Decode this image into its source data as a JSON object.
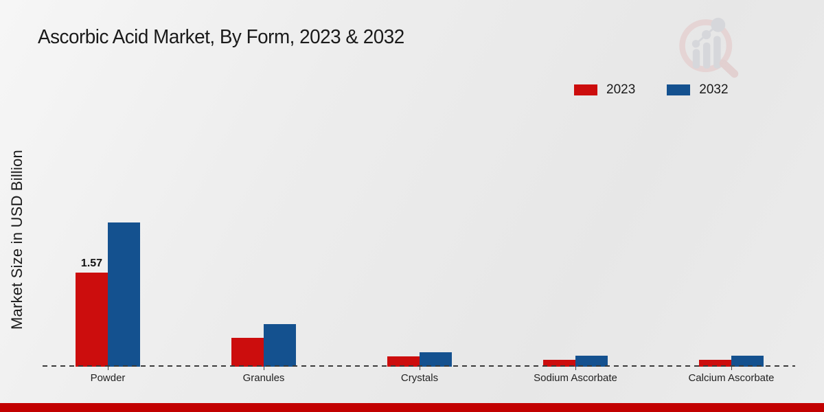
{
  "header": {
    "title": "Ascorbic Acid Market, By Form, 2023 & 2032"
  },
  "axes": {
    "y_label": "Market Size in USD Billion"
  },
  "colors": {
    "series_2023": "#cc0d0d",
    "series_2032": "#14518f",
    "bottom_bar": "#c20000",
    "baseline": "#3a3a3a",
    "background": "#ececec"
  },
  "watermark": {
    "name": "market-research-future-logo"
  },
  "chart_data": {
    "type": "bar",
    "title": "Ascorbic Acid Market, By Form, 2023 & 2032",
    "xlabel": "",
    "ylabel": "Market Size in USD Billion",
    "categories": [
      "Powder",
      "Granules",
      "Crystals",
      "Sodium Ascorbate",
      "Calcium Ascorbate"
    ],
    "series": [
      {
        "name": "2023",
        "color": "#cc0d0d",
        "values": [
          1.57,
          0.48,
          0.17,
          0.12,
          0.12
        ]
      },
      {
        "name": "2032",
        "color": "#14518f",
        "values": [
          2.41,
          0.71,
          0.24,
          0.18,
          0.18
        ]
      }
    ],
    "annotations": [
      {
        "category": "Powder",
        "series": "2023",
        "text": "1.57"
      }
    ],
    "ylim": [
      0,
      2.5
    ],
    "grid": false,
    "legend_position": "top-right",
    "baseline_style": "dashed"
  }
}
